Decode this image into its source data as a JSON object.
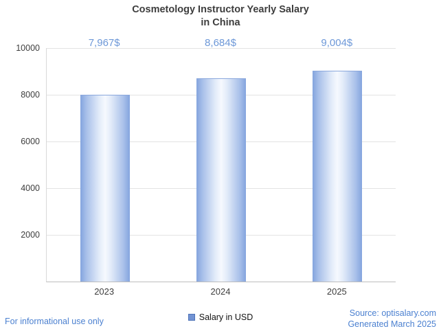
{
  "title": {
    "line1": "Cosmetology Instructor Yearly Salary",
    "line2": "in China"
  },
  "chart_data": {
    "type": "bar",
    "title": "Cosmetology Instructor Yearly Salary in China",
    "categories": [
      "2023",
      "2024",
      "2025"
    ],
    "series": [
      {
        "name": "Salary in USD",
        "values": [
          7967,
          8684,
          9004
        ]
      }
    ],
    "values": [
      7967,
      8684,
      9004
    ],
    "value_labels": [
      "7,967$",
      "8,684$",
      "9,004$"
    ],
    "xlabel": "",
    "ylabel": "",
    "ylim": [
      0,
      10000
    ],
    "yticks": [
      2000,
      4000,
      6000,
      8000,
      10000
    ],
    "grid": true,
    "legend_position": "bottom"
  },
  "legend": {
    "label": "Salary in USD",
    "swatch_color": "#7293d3"
  },
  "footer": {
    "disclaimer": "For informational use only",
    "source": "Source: optisalary.com",
    "generated": "Generated March 2025"
  },
  "colors": {
    "accent_blue": "#6d98d8",
    "footer_blue": "#4b80d0",
    "bar_edge": "#84a4de",
    "grid": "#e3e3e3"
  }
}
